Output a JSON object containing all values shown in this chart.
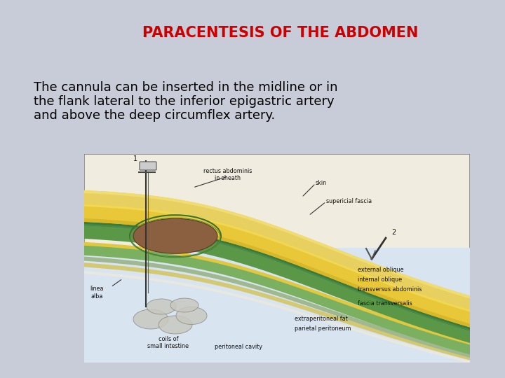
{
  "title": "PARACENTESIS OF THE ABDOMEN",
  "title_color": "#cc0000",
  "title_fontsize": 15,
  "title_fontweight": "bold",
  "bullet_lines": [
    "The cannula can be inserted in the midline or in",
    "the flank lateral to the inferior epigastric artery",
    "and above the deep circumflex artery."
  ],
  "bullet_fontsize": 13,
  "slide_bg": "#c8ccd8",
  "inner_bg": "#dde0ea",
  "title_box_bg": "#ffffff",
  "title_box_border": "#aaaaaa",
  "bullet_box_bg": "#ffffff",
  "bullet_box_border": "#aaaaaa",
  "separator_color": "#888888",
  "outer_border_color": "#8899bb",
  "diag_bg": "#f0ede0",
  "label_fontsize": 5.8
}
